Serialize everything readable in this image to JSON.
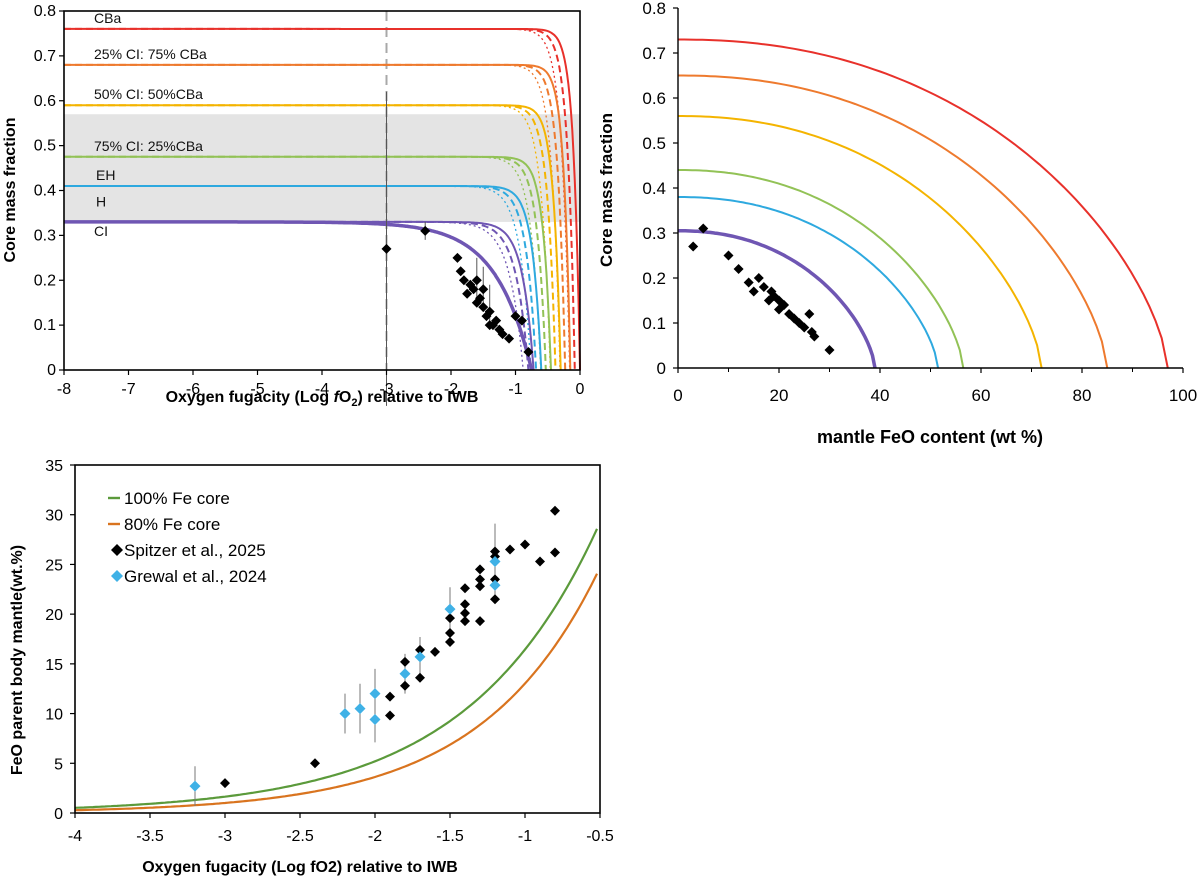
{
  "colors": {
    "red": "#e8312b",
    "orange": "#ee7a2e",
    "yellow": "#f4b400",
    "lightgreen": "#92c256",
    "lightblue": "#2ea9df",
    "purple": "#6f56b3",
    "gray_band": "#e4e4e4",
    "dashed_line": "#a8a8a8",
    "green": "#5b9a3b",
    "brownorange": "#d9741f",
    "black": "#000000",
    "sky": "#3fb1e6"
  },
  "chart_data": [
    {
      "id": "panel-a",
      "type": "line",
      "title": "",
      "xlabel": "Oxygen fugacity (Log fO2) relative to IWB",
      "xlabel_parts": [
        "Oxygen fugacity (Log ",
        "f",
        "O",
        "2",
        ") relative to IWB"
      ],
      "ylabel": "Core mass fraction",
      "xlim": [
        -8,
        0
      ],
      "ylim": [
        0,
        0.8
      ],
      "xticks": [
        "-8",
        "-7",
        "-6",
        "-5",
        "-4",
        "-3",
        "-2",
        "-1",
        "0"
      ],
      "yticks": [
        "0",
        "0.1",
        "0.2",
        "0.3",
        "0.4",
        "0.5",
        "0.6",
        "0.7",
        "0.8"
      ],
      "shaded_band_y": [
        0.33,
        0.57
      ],
      "vertical_line_x": -3,
      "series": [
        {
          "name": "CBa",
          "color": "red",
          "plateau": 0.76
        },
        {
          "name": "25% CI: 75% CBa",
          "color": "orange",
          "plateau": 0.68
        },
        {
          "name": "50% CI: 50%CBa",
          "color": "yellow",
          "plateau": 0.59
        },
        {
          "name": "75% CI: 25%CBa",
          "color": "lightgreen",
          "plateau": 0.475
        },
        {
          "name": "EH",
          "color": "lightblue",
          "plateau": 0.41
        },
        {
          "name": "H",
          "color": "lightblue",
          "plateau": 0.41
        },
        {
          "name": "CI",
          "color": "purple",
          "plateau": 0.33
        }
      ],
      "points": [
        {
          "x": -3.0,
          "y": 0.27
        },
        {
          "x": -2.4,
          "y": 0.31
        },
        {
          "x": -1.9,
          "y": 0.25
        },
        {
          "x": -1.85,
          "y": 0.22
        },
        {
          "x": -1.8,
          "y": 0.2
        },
        {
          "x": -1.75,
          "y": 0.17
        },
        {
          "x": -1.7,
          "y": 0.19
        },
        {
          "x": -1.65,
          "y": 0.18
        },
        {
          "x": -1.6,
          "y": 0.15
        },
        {
          "x": -1.55,
          "y": 0.16
        },
        {
          "x": -1.5,
          "y": 0.14
        },
        {
          "x": -1.45,
          "y": 0.12
        },
        {
          "x": -1.4,
          "y": 0.13
        },
        {
          "x": -1.35,
          "y": 0.1
        },
        {
          "x": -1.3,
          "y": 0.11
        },
        {
          "x": -1.25,
          "y": 0.09
        },
        {
          "x": -1.2,
          "y": 0.08
        },
        {
          "x": -1.1,
          "y": 0.07
        },
        {
          "x": -1.0,
          "y": 0.12
        },
        {
          "x": -0.9,
          "y": 0.11
        },
        {
          "x": -0.8,
          "y": 0.04
        },
        {
          "x": -1.5,
          "y": 0.18
        },
        {
          "x": -1.6,
          "y": 0.2
        },
        {
          "x": -1.4,
          "y": 0.1
        }
      ]
    },
    {
      "id": "panel-b",
      "type": "line",
      "title": "",
      "xlabel": "mantle FeO content (wt %)",
      "ylabel": "Core mass fraction",
      "xlim": [
        0,
        100
      ],
      "ylim": [
        0,
        0.8
      ],
      "xticks": [
        "0",
        "20",
        "40",
        "60",
        "80",
        "100"
      ],
      "yticks": [
        "0",
        "0.1",
        "0.2",
        "0.3",
        "0.4",
        "0.5",
        "0.6",
        "0.7",
        "0.8"
      ],
      "series": [
        {
          "name": "CBa",
          "color": "red",
          "y0": 0.73,
          "x0": 97
        },
        {
          "name": "25% CI: 75% CBa",
          "color": "orange",
          "y0": 0.65,
          "x0": 85
        },
        {
          "name": "50% CI: 50%CBa",
          "color": "yellow",
          "y0": 0.56,
          "x0": 72
        },
        {
          "name": "75% CI: 25%CBa",
          "color": "lightgreen",
          "y0": 0.44,
          "x0": 56.5
        },
        {
          "name": "EH",
          "color": "lightblue",
          "y0": 0.38,
          "x0": 51.5
        },
        {
          "name": "CI",
          "color": "purple",
          "y0": 0.305,
          "x0": 39
        }
      ],
      "points": [
        {
          "x": 3,
          "y": 0.27
        },
        {
          "x": 5,
          "y": 0.31
        },
        {
          "x": 10,
          "y": 0.25
        },
        {
          "x": 12,
          "y": 0.22
        },
        {
          "x": 14,
          "y": 0.19
        },
        {
          "x": 15,
          "y": 0.17
        },
        {
          "x": 16,
          "y": 0.2
        },
        {
          "x": 17,
          "y": 0.18
        },
        {
          "x": 18,
          "y": 0.15
        },
        {
          "x": 19,
          "y": 0.16
        },
        {
          "x": 20,
          "y": 0.13
        },
        {
          "x": 21,
          "y": 0.14
        },
        {
          "x": 22,
          "y": 0.12
        },
        {
          "x": 23,
          "y": 0.11
        },
        {
          "x": 24,
          "y": 0.1
        },
        {
          "x": 25,
          "y": 0.09
        },
        {
          "x": 26,
          "y": 0.12
        },
        {
          "x": 26.5,
          "y": 0.08
        },
        {
          "x": 27,
          "y": 0.07
        },
        {
          "x": 30,
          "y": 0.04
        },
        {
          "x": 18.5,
          "y": 0.17
        },
        {
          "x": 20,
          "y": 0.15
        }
      ]
    },
    {
      "id": "panel-c",
      "type": "scatter",
      "title": "",
      "xlabel": "Oxygen fugacity (Log fO2) relative to IWB",
      "ylabel": "FeO parent body mantle(wt.%)",
      "xlim": [
        -4,
        -0.5
      ],
      "ylim": [
        0,
        35
      ],
      "xticks": [
        "-4",
        "-3.5",
        "-3",
        "-2.5",
        "-2",
        "-1.5",
        "-1",
        "-0.5"
      ],
      "yticks": [
        "0",
        "5",
        "10",
        "15",
        "20",
        "25",
        "30",
        "35"
      ],
      "legend": [
        {
          "label": "100% Fe core",
          "kind": "line",
          "color": "green"
        },
        {
          "label": "80% Fe core",
          "kind": "line",
          "color": "brownorange"
        },
        {
          "label": "Spitzer et al., 2025",
          "kind": "marker",
          "color": "black"
        },
        {
          "label": "Grewal et al., 2024",
          "kind": "marker",
          "color": "sky"
        }
      ],
      "series": [
        {
          "name": "100% Fe core",
          "color": "green",
          "k": 1.0
        },
        {
          "name": "80% Fe core",
          "color": "brownorange",
          "k": 0.9
        }
      ],
      "spitzer": [
        {
          "x": -3.0,
          "y": 3.0
        },
        {
          "x": -2.4,
          "y": 5.0
        },
        {
          "x": -1.9,
          "y": 9.8
        },
        {
          "x": -1.9,
          "y": 11.7
        },
        {
          "x": -1.8,
          "y": 12.8
        },
        {
          "x": -1.8,
          "y": 15.2
        },
        {
          "x": -1.7,
          "y": 13.6
        },
        {
          "x": -1.7,
          "y": 16.4
        },
        {
          "x": -1.6,
          "y": 16.2
        },
        {
          "x": -1.5,
          "y": 17.2
        },
        {
          "x": -1.5,
          "y": 18.1
        },
        {
          "x": -1.5,
          "y": 19.6
        },
        {
          "x": -1.5,
          "y": 20.5
        },
        {
          "x": -1.4,
          "y": 19.3
        },
        {
          "x": -1.4,
          "y": 20.1
        },
        {
          "x": -1.4,
          "y": 21.0
        },
        {
          "x": -1.4,
          "y": 22.6
        },
        {
          "x": -1.3,
          "y": 19.3
        },
        {
          "x": -1.3,
          "y": 22.8
        },
        {
          "x": -1.3,
          "y": 23.5
        },
        {
          "x": -1.3,
          "y": 24.5
        },
        {
          "x": -1.2,
          "y": 21.5
        },
        {
          "x": -1.2,
          "y": 23.5
        },
        {
          "x": -1.2,
          "y": 25.8
        },
        {
          "x": -1.2,
          "y": 26.3
        },
        {
          "x": -1.1,
          "y": 26.5
        },
        {
          "x": -1.0,
          "y": 27.0
        },
        {
          "x": -0.9,
          "y": 25.3
        },
        {
          "x": -0.8,
          "y": 26.2
        },
        {
          "x": -0.8,
          "y": 30.4
        }
      ],
      "grewal": [
        {
          "x": -3.2,
          "y": 2.7,
          "err": 2.0
        },
        {
          "x": -2.2,
          "y": 10.0,
          "err": 2.0
        },
        {
          "x": -2.1,
          "y": 10.5,
          "err": 2.5
        },
        {
          "x": -2.0,
          "y": 12.0,
          "err": 2.5
        },
        {
          "x": -2.0,
          "y": 9.4,
          "err": 2.3
        },
        {
          "x": -1.8,
          "y": 14.0,
          "err": 2.0
        },
        {
          "x": -1.7,
          "y": 15.7,
          "err": 2.0
        },
        {
          "x": -1.5,
          "y": 20.5,
          "err": 2.2
        },
        {
          "x": -1.2,
          "y": 25.3,
          "err": 3.8
        },
        {
          "x": -1.2,
          "y": 22.9,
          "err": 0.8
        }
      ]
    }
  ]
}
